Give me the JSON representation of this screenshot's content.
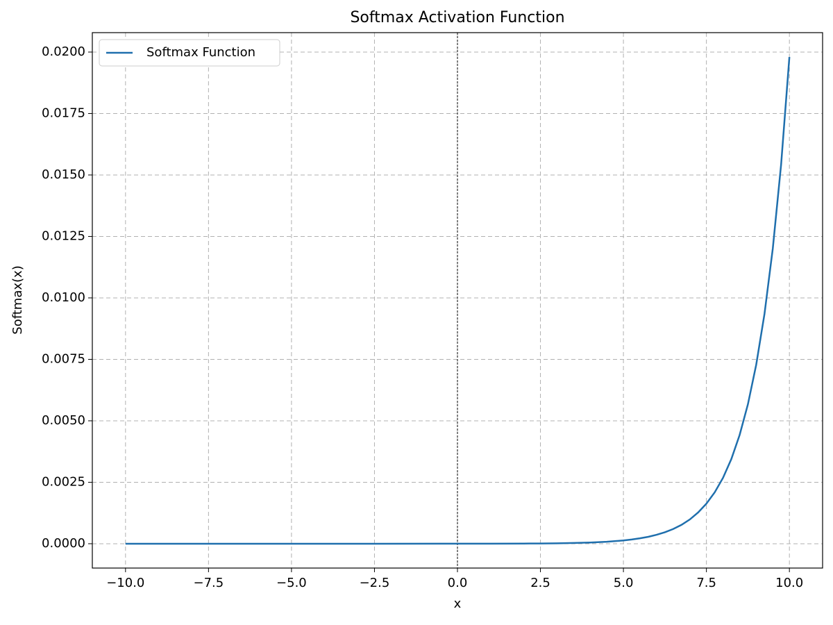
{
  "chart_data": {
    "type": "line",
    "title": "Softmax Activation Function",
    "x_label": "x",
    "y_label": "Softmax(x)",
    "x": [
      -10,
      -7.5,
      -5,
      -2.5,
      0,
      1,
      2,
      2.5,
      3,
      3.5,
      4,
      4.5,
      5,
      5.25,
      5.5,
      5.75,
      6,
      6.25,
      6.5,
      6.75,
      7,
      7.25,
      7.5,
      7.75,
      8,
      8.25,
      8.5,
      8.75,
      9,
      9.25,
      9.5,
      9.75,
      10
    ],
    "series": [
      {
        "name": "Softmax Function",
        "color": "#1f6fad",
        "values": [
          0,
          0,
          0,
          0,
          9e-07,
          2.4e-06,
          6.6e-06,
          1.1e-05,
          1.8e-05,
          3e-05,
          4.9e-05,
          8.1e-05,
          0.000133,
          0.000171,
          0.00022,
          0.000282,
          0.000363,
          0.000466,
          0.000598,
          0.000768,
          0.000986,
          0.00127,
          0.00163,
          0.00209,
          0.00268,
          0.00344,
          0.00442,
          0.00567,
          0.00728,
          0.00935,
          0.01201,
          0.01542,
          0.0198
        ]
      }
    ],
    "xlim": [
      -11,
      11
    ],
    "ylim": [
      -0.00099,
      0.02079
    ],
    "xticks": [
      {
        "value": -10,
        "label": "−10.0"
      },
      {
        "value": -7.5,
        "label": "−7.5"
      },
      {
        "value": -5,
        "label": "−5.0"
      },
      {
        "value": -2.5,
        "label": "−2.5"
      },
      {
        "value": 0,
        "label": "0.0"
      },
      {
        "value": 2.5,
        "label": "2.5"
      },
      {
        "value": 5,
        "label": "5.0"
      },
      {
        "value": 7.5,
        "label": "7.5"
      },
      {
        "value": 10,
        "label": "10.0"
      }
    ],
    "yticks": [
      {
        "value": 0,
        "label": "0.0000"
      },
      {
        "value": 0.0025,
        "label": "0.0025"
      },
      {
        "value": 0.005,
        "label": "0.0050"
      },
      {
        "value": 0.0075,
        "label": "0.0075"
      },
      {
        "value": 0.01,
        "label": "0.0100"
      },
      {
        "value": 0.0125,
        "label": "0.0125"
      },
      {
        "value": 0.015,
        "label": "0.0150"
      },
      {
        "value": 0.0175,
        "label": "0.0175"
      },
      {
        "value": 0.02,
        "label": "0.0200"
      }
    ],
    "vline_x": 0,
    "grid": true,
    "legend": "upper-left"
  }
}
